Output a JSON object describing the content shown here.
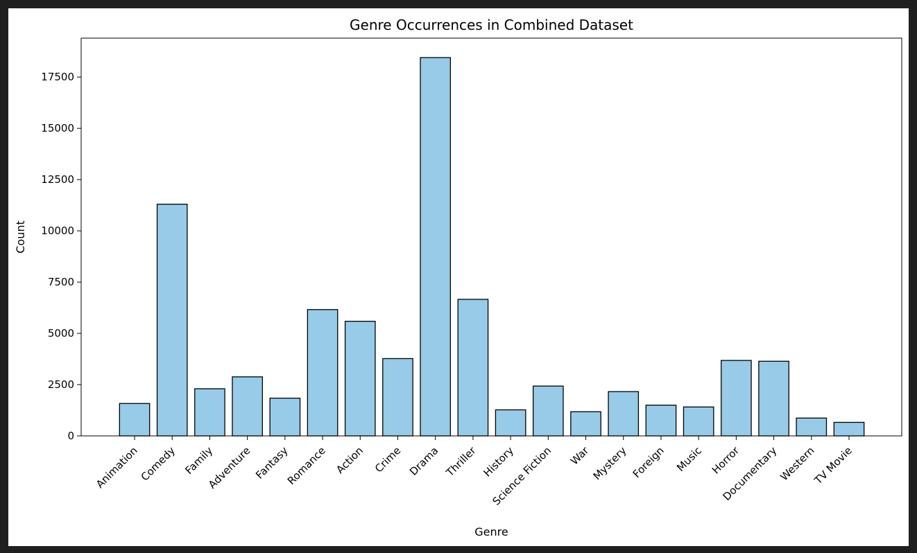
{
  "colors": {
    "background": "#1f1f1f",
    "figure": "#ffffff",
    "bar_fill": "#97cbe8",
    "bar_stroke": "#000000"
  },
  "chart_data": {
    "type": "bar",
    "title": "Genre Occurrences in Combined Dataset",
    "xlabel": "Genre",
    "ylabel": "Count",
    "ylim": [
      0,
      19400
    ],
    "yticks": [
      0,
      2500,
      5000,
      7500,
      10000,
      12500,
      15000,
      17500
    ],
    "ytick_labels": [
      "0",
      "2500",
      "5000",
      "7500",
      "10000",
      "12500",
      "15000",
      "17500"
    ],
    "grid": false,
    "legend": "none",
    "categories": [
      "Animation",
      "Comedy",
      "Family",
      "Adventure",
      "Fantasy",
      "Romance",
      "Action",
      "Crime",
      "Drama",
      "Thriller",
      "History",
      "Science Fiction",
      "War",
      "Mystery",
      "Foreign",
      "Music",
      "Horror",
      "Documentary",
      "Western",
      "TV Movie"
    ],
    "values": [
      1580,
      11300,
      2300,
      2880,
      1840,
      6160,
      5590,
      3770,
      18450,
      6660,
      1270,
      2430,
      1180,
      2160,
      1500,
      1410,
      3680,
      3640,
      870,
      660
    ]
  }
}
